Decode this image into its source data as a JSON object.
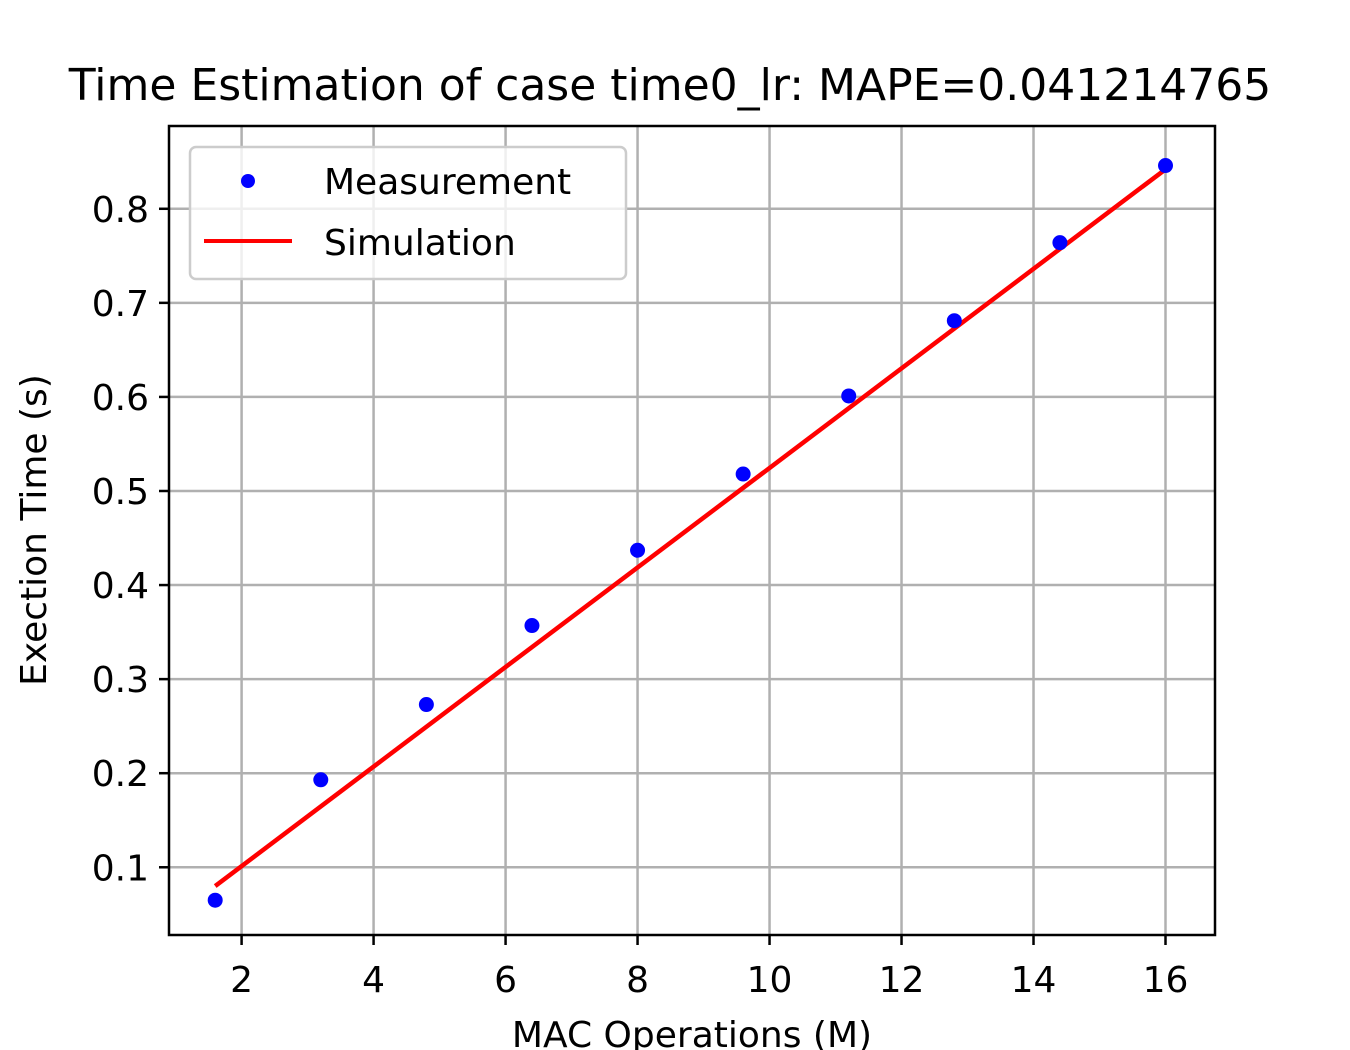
{
  "chart_data": {
    "type": "line",
    "title": "Time Estimation of case time0_lr: MAPE=0.041214765",
    "xlabel": "MAC Operations (M)",
    "ylabel": "Exection Time (s)",
    "xlim": [
      0.9,
      16.75
    ],
    "ylim": [
      0.028,
      0.888
    ],
    "xticks": [
      2,
      4,
      6,
      8,
      10,
      12,
      14,
      16
    ],
    "yticks": [
      0.1,
      0.2,
      0.3,
      0.4,
      0.5,
      0.6,
      0.7,
      0.8
    ],
    "grid": true,
    "legend_position": "top-left",
    "series": [
      {
        "name": "Measurement",
        "style": "points",
        "color": "#0000ff",
        "x": [
          1.6,
          3.2,
          4.8,
          6.4,
          8.0,
          9.6,
          11.2,
          12.8,
          14.4,
          16.0
        ],
        "y": [
          0.065,
          0.193,
          0.273,
          0.357,
          0.437,
          0.518,
          0.601,
          0.681,
          0.764,
          0.846
        ]
      },
      {
        "name": "Simulation",
        "style": "line",
        "color": "#ff0000",
        "x": [
          1.6,
          16.0
        ],
        "y": [
          0.08,
          0.842
        ]
      }
    ]
  }
}
